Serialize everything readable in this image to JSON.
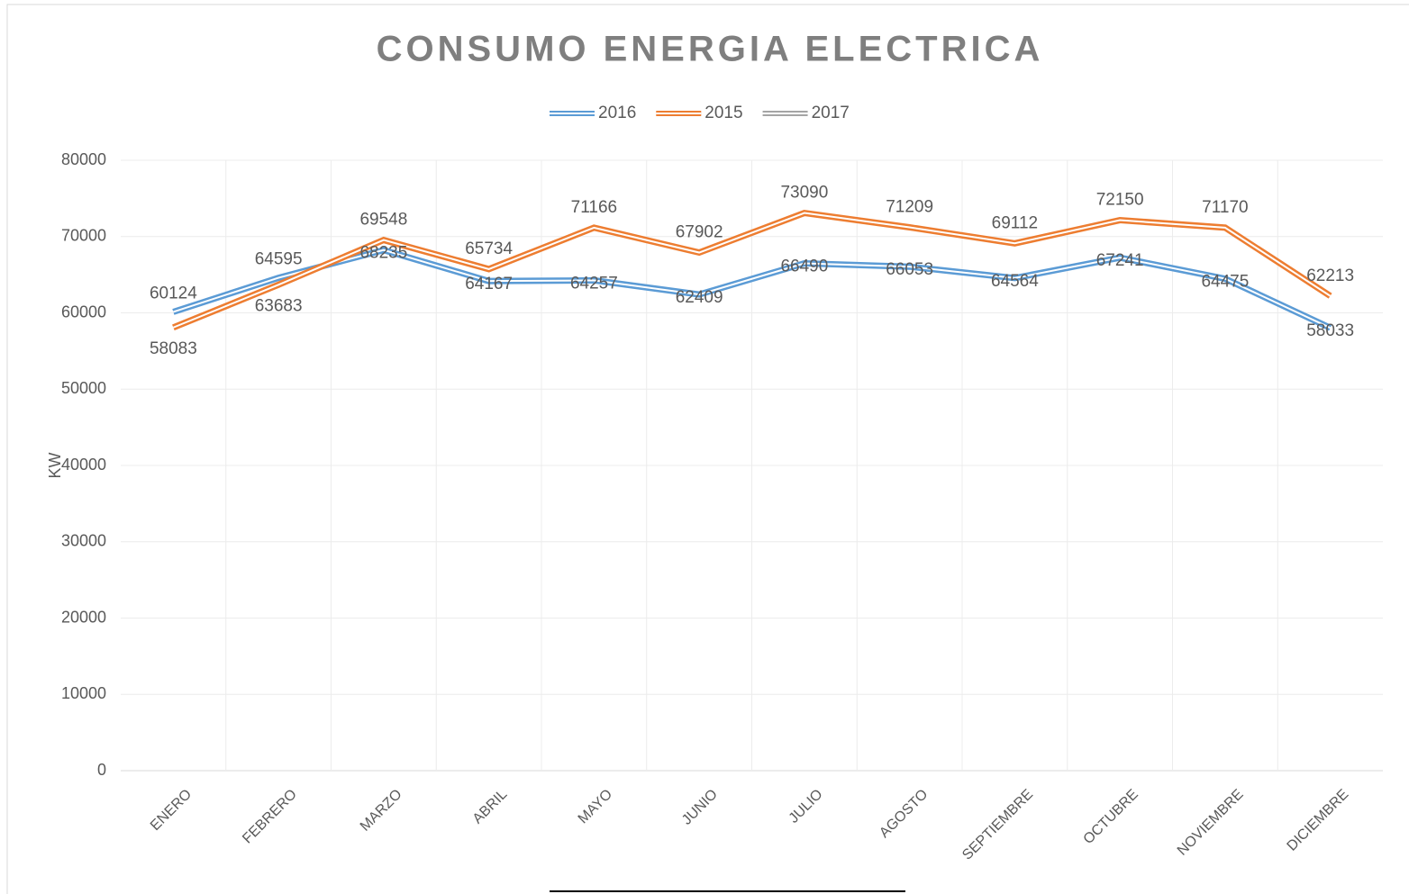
{
  "chart_data": {
    "type": "line",
    "title": "CONSUMO ENERGIA ELECTRICA",
    "y_label": "KW",
    "categories": [
      "ENERO",
      "FEBRERO",
      "MARZO",
      "ABRIL",
      "MAYO",
      "JUNIO",
      "JULIO",
      "AGOSTO",
      "SEPTIEMBRE",
      "OCTUBRE",
      "NOVIEMBRE",
      "DICIEMBRE"
    ],
    "series": [
      {
        "name": "2016",
        "color": "#5b9bd5",
        "values": [
          60124,
          64595,
          68235,
          64167,
          64257,
          62409,
          66490,
          66053,
          64564,
          67241,
          64475,
          58033
        ]
      },
      {
        "name": "2015",
        "color": "#ed7d31",
        "values": [
          58083,
          63683,
          69548,
          65734,
          71166,
          67902,
          73090,
          71209,
          69112,
          72150,
          71170,
          62213
        ]
      },
      {
        "name": "2017",
        "color": "#a5a5a5",
        "values": [
          null,
          null,
          null,
          null,
          null,
          null,
          null,
          null,
          null,
          null,
          null,
          null
        ]
      }
    ],
    "ylim": [
      0,
      80000
    ],
    "yticks": [
      0,
      10000,
      20000,
      30000,
      40000,
      50000,
      60000,
      70000,
      80000
    ],
    "grid": true,
    "legend": "top",
    "line_style": "double"
  }
}
